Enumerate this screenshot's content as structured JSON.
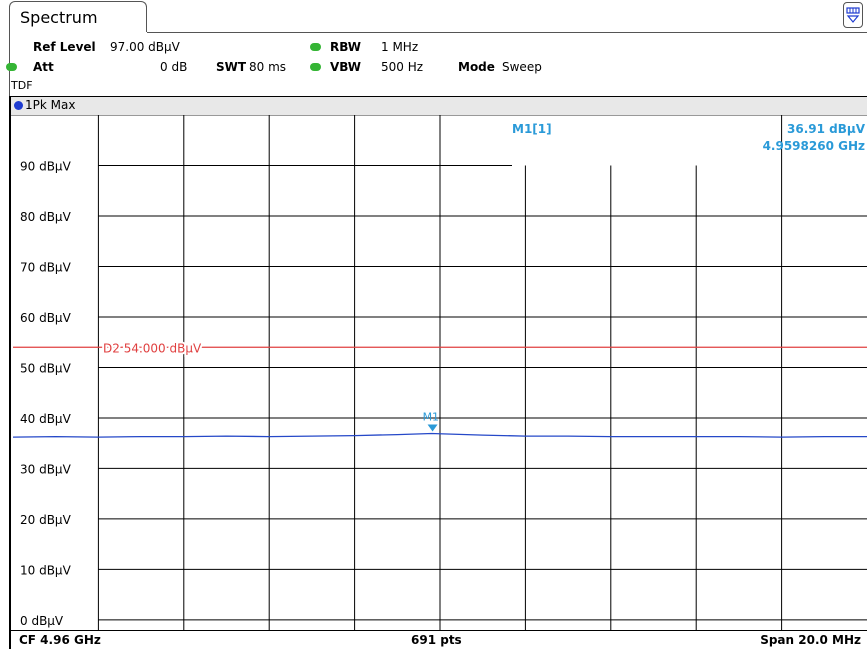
{
  "tab": {
    "title": "Spectrum"
  },
  "settings": {
    "ref_level_label": "Ref Level",
    "ref_level_value": "97.00 dBµV",
    "att_label": "Att",
    "att_value": "0 dB",
    "swt_label": "SWT",
    "swt_value": "80 ms",
    "rbw_label": "RBW",
    "rbw_value": "1 MHz",
    "vbw_label": "VBW",
    "vbw_value": "500 Hz",
    "mode_label": "Mode",
    "mode_value": "Sweep",
    "tdf": "TDF"
  },
  "trace_label": "1Pk Max",
  "marker_info": {
    "name": "M1[1]",
    "level": "36.91 dBµV",
    "freq": "4.9598260 GHz"
  },
  "footer": {
    "cf": "CF 4.96 GHz",
    "points": "691 pts",
    "span": "Span 20.0 MHz"
  },
  "colors": {
    "trace": "#2548c8",
    "limit": "#e04040",
    "marker": "#2a9ad8",
    "grid": "#000000",
    "indicator": "#35b535"
  },
  "chart_data": {
    "type": "line",
    "xlabel": "",
    "ylabel": "",
    "ylim": [
      -2,
      100
    ],
    "yticks": [
      0,
      10,
      20,
      30,
      40,
      50,
      60,
      70,
      80,
      90
    ],
    "ytick_labels": [
      "0 dBµV",
      "10 dBµV",
      "20 dBµV",
      "30 dBµV",
      "40 dBµV",
      "50 dBµV",
      "60 dBµV",
      "70 dBµV",
      "80 dBµV",
      "90 dBµV"
    ],
    "x_divisions": 10,
    "grid": true,
    "x_center_ghz": 4.96,
    "x_span_mhz": 20.0,
    "series": [
      {
        "x": [
          4.95,
          4.951,
          4.952,
          4.953,
          4.954,
          4.955,
          4.956,
          4.957,
          4.958,
          4.959,
          4.9598,
          4.961,
          4.962,
          4.963,
          4.964,
          4.965,
          4.966,
          4.967,
          4.968,
          4.969,
          4.97
        ],
        "values": [
          36.2,
          36.3,
          36.2,
          36.3,
          36.3,
          36.4,
          36.3,
          36.4,
          36.5,
          36.7,
          36.91,
          36.6,
          36.4,
          36.4,
          36.3,
          36.3,
          36.3,
          36.3,
          36.2,
          36.3,
          36.3
        ]
      }
    ],
    "limit_line": {
      "name": "D2",
      "value": 54.0,
      "label": "D2 54.000 dBµV"
    },
    "markers": [
      {
        "name": "M1",
        "x": 4.959826,
        "y": 36.91
      }
    ]
  }
}
